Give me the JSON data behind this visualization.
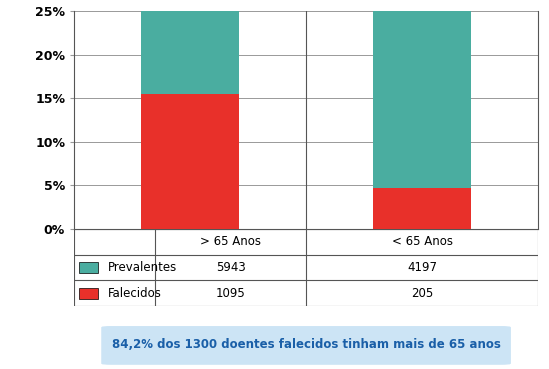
{
  "categories": [
    "> 65 Anos",
    "< 65 Anos"
  ],
  "falecidos_pct": [
    15.5,
    4.7
  ],
  "total_pct": [
    25.0,
    25.0
  ],
  "falecidos_color": "#e8302a",
  "prevalentes_color": "#4aada0",
  "yticks": [
    0.0,
    0.05,
    0.1,
    0.15,
    0.2,
    0.25
  ],
  "ytick_labels": [
    "0%",
    "5%",
    "10%",
    "15%",
    "20%",
    "25%"
  ],
  "table_row1_label": "Prevalentes",
  "table_row2_label": "Falecidos",
  "table_data": [
    [
      "5943",
      "4197"
    ],
    [
      "1095",
      "205"
    ]
  ],
  "annotation": "84,2% dos 1300 doentes falecidos tinham mais de 65 anos",
  "annotation_bg": "#cce4f5",
  "annotation_color": "#1a5fa8",
  "bar_width": 0.42,
  "grid_color": "#999999",
  "border_color": "#555555"
}
